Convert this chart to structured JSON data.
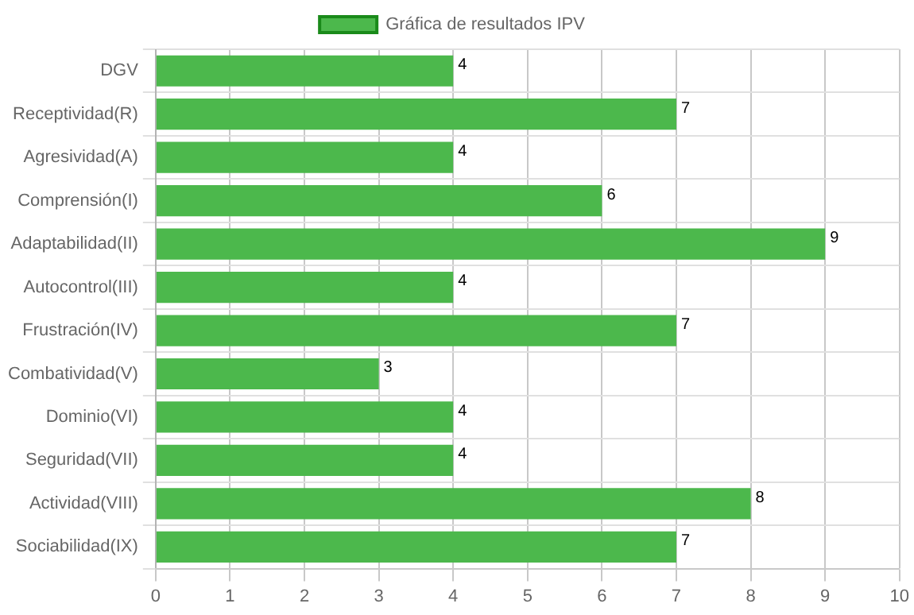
{
  "chart_data": {
    "type": "bar",
    "orientation": "horizontal",
    "categories": [
      "DGV",
      "Receptividad(R)",
      "Agresividad(A)",
      "Comprensión(I)",
      "Adaptabilidad(II)",
      "Autocontrol(III)",
      "Frustración(IV)",
      "Combatividad(V)",
      "Dominio(VI)",
      "Seguridad(VII)",
      "Actividad(VIII)",
      "Sociabilidad(IX)"
    ],
    "series": [
      {
        "name": "Gráfica de resultados IPV",
        "color": "#4cb84c",
        "values": [
          4,
          7,
          4,
          6,
          9,
          4,
          7,
          3,
          4,
          4,
          8,
          7
        ]
      }
    ],
    "xlim": [
      0,
      10
    ],
    "xticks": [
      0,
      1,
      2,
      3,
      4,
      5,
      6,
      7,
      8,
      9,
      10
    ],
    "grid": true,
    "legend": "top",
    "data_labels": true
  }
}
